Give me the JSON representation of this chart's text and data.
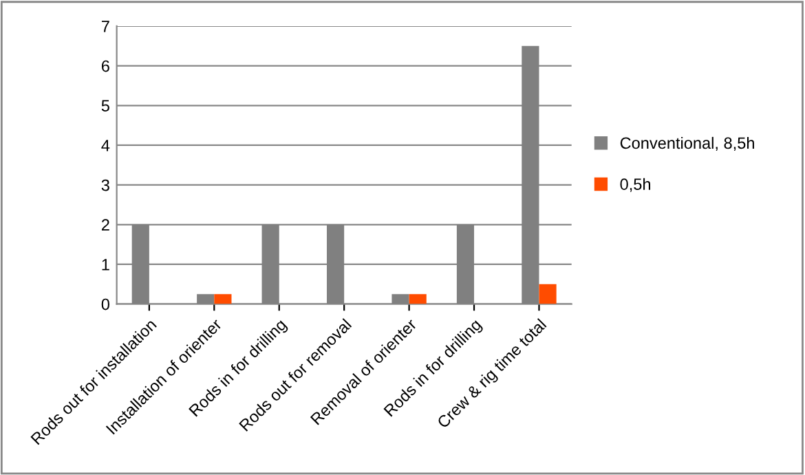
{
  "chart_data": {
    "type": "bar",
    "categories": [
      "Rods out for installation",
      "Installation of orienter",
      "Rods in for drilling",
      "Rods out for removal",
      "Removal of orienter",
      "Rods in for drilling",
      "Crew & rig time total"
    ],
    "series": [
      {
        "name": "Conventional, 8,5h",
        "color": "#808080",
        "values": [
          2,
          0.25,
          2,
          2,
          0.25,
          2,
          6.5
        ]
      },
      {
        "name": "0,5h",
        "color": "#ff4c00",
        "values": [
          0,
          0.25,
          0,
          0,
          0.25,
          0,
          0.5
        ]
      }
    ],
    "ylim": [
      0,
      7
    ],
    "yticks": [
      0,
      1,
      2,
      3,
      4,
      5,
      6,
      7
    ],
    "grid": "y",
    "legend": "right"
  }
}
